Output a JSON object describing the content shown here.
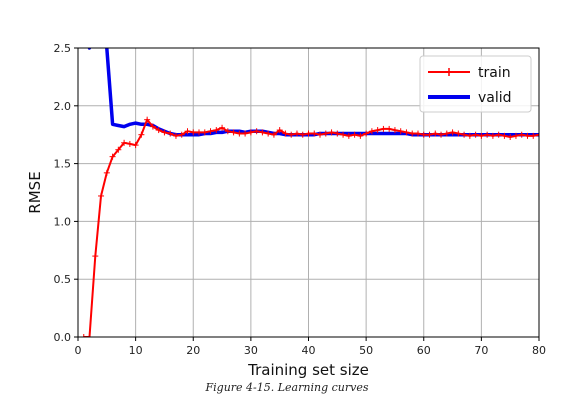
{
  "chart_data": {
    "type": "line",
    "xlabel": "Training set size",
    "ylabel": "RMSE",
    "xlim": [
      0,
      80
    ],
    "ylim": [
      0,
      2.5
    ],
    "xticks": [
      "0",
      "10",
      "20",
      "30",
      "40",
      "50",
      "60",
      "70",
      "80"
    ],
    "yticks": [
      "0.0",
      "0.5",
      "1.0",
      "1.5",
      "2.0",
      "2.5"
    ],
    "grid": true,
    "legend_position": "top-right",
    "series": [
      {
        "name": "train",
        "color": "#ff0000",
        "marker": "plus",
        "x": [
          1,
          2,
          3,
          4,
          5,
          6,
          7,
          8,
          9,
          10,
          11,
          12,
          13,
          14,
          15,
          16,
          17,
          18,
          19,
          20,
          21,
          22,
          23,
          24,
          25,
          26,
          27,
          28,
          29,
          30,
          31,
          32,
          33,
          34,
          35,
          36,
          37,
          38,
          39,
          40,
          41,
          42,
          43,
          44,
          45,
          46,
          47,
          48,
          49,
          50,
          51,
          52,
          53,
          54,
          55,
          56,
          57,
          58,
          59,
          60,
          61,
          62,
          63,
          64,
          65,
          66,
          67,
          68,
          69,
          70,
          71,
          72,
          73,
          74,
          75,
          76,
          77,
          78,
          79,
          80
        ],
        "y": [
          0.0,
          0.0,
          0.7,
          1.22,
          1.42,
          1.56,
          1.62,
          1.68,
          1.67,
          1.66,
          1.75,
          1.88,
          1.82,
          1.79,
          1.77,
          1.76,
          1.74,
          1.75,
          1.78,
          1.77,
          1.77,
          1.77,
          1.78,
          1.79,
          1.81,
          1.78,
          1.77,
          1.76,
          1.76,
          1.77,
          1.78,
          1.77,
          1.76,
          1.75,
          1.79,
          1.76,
          1.75,
          1.76,
          1.75,
          1.76,
          1.76,
          1.75,
          1.76,
          1.77,
          1.76,
          1.75,
          1.74,
          1.75,
          1.74,
          1.76,
          1.78,
          1.79,
          1.8,
          1.8,
          1.79,
          1.78,
          1.77,
          1.76,
          1.76,
          1.75,
          1.75,
          1.76,
          1.75,
          1.76,
          1.77,
          1.76,
          1.75,
          1.74,
          1.75,
          1.74,
          1.75,
          1.74,
          1.75,
          1.74,
          1.73,
          1.74,
          1.75,
          1.74,
          1.74,
          1.75
        ]
      },
      {
        "name": "valid",
        "color": "#0000ee",
        "marker": "none",
        "x": [
          1,
          2,
          3,
          4,
          5,
          6,
          7,
          8,
          9,
          10,
          11,
          12,
          13,
          14,
          15,
          16,
          17,
          18,
          19,
          20,
          21,
          22,
          23,
          24,
          25,
          26,
          27,
          28,
          29,
          30,
          31,
          32,
          33,
          34,
          35,
          36,
          37,
          38,
          39,
          40,
          41,
          42,
          43,
          44,
          45,
          46,
          47,
          48,
          49,
          50,
          51,
          52,
          53,
          54,
          55,
          56,
          57,
          58,
          59,
          60,
          61,
          62,
          63,
          64,
          65,
          66,
          67,
          68,
          69,
          70,
          71,
          72,
          73,
          74,
          75,
          76,
          77,
          78,
          79,
          80
        ],
        "y": [
          2.9,
          2.5,
          2.7,
          2.6,
          2.5,
          1.84,
          1.83,
          1.82,
          1.84,
          1.85,
          1.84,
          1.84,
          1.83,
          1.8,
          1.78,
          1.76,
          1.75,
          1.75,
          1.75,
          1.75,
          1.75,
          1.76,
          1.76,
          1.77,
          1.77,
          1.78,
          1.78,
          1.78,
          1.77,
          1.78,
          1.78,
          1.78,
          1.77,
          1.76,
          1.76,
          1.75,
          1.75,
          1.75,
          1.75,
          1.75,
          1.75,
          1.76,
          1.76,
          1.76,
          1.76,
          1.76,
          1.76,
          1.76,
          1.76,
          1.76,
          1.76,
          1.76,
          1.76,
          1.76,
          1.76,
          1.76,
          1.76,
          1.75,
          1.75,
          1.75,
          1.75,
          1.75,
          1.75,
          1.75,
          1.75,
          1.75,
          1.75,
          1.75,
          1.75,
          1.75,
          1.75,
          1.75,
          1.75,
          1.75,
          1.75,
          1.75,
          1.75,
          1.75,
          1.75,
          1.75
        ]
      }
    ]
  },
  "caption": "Figure 4-15. Learning curves"
}
